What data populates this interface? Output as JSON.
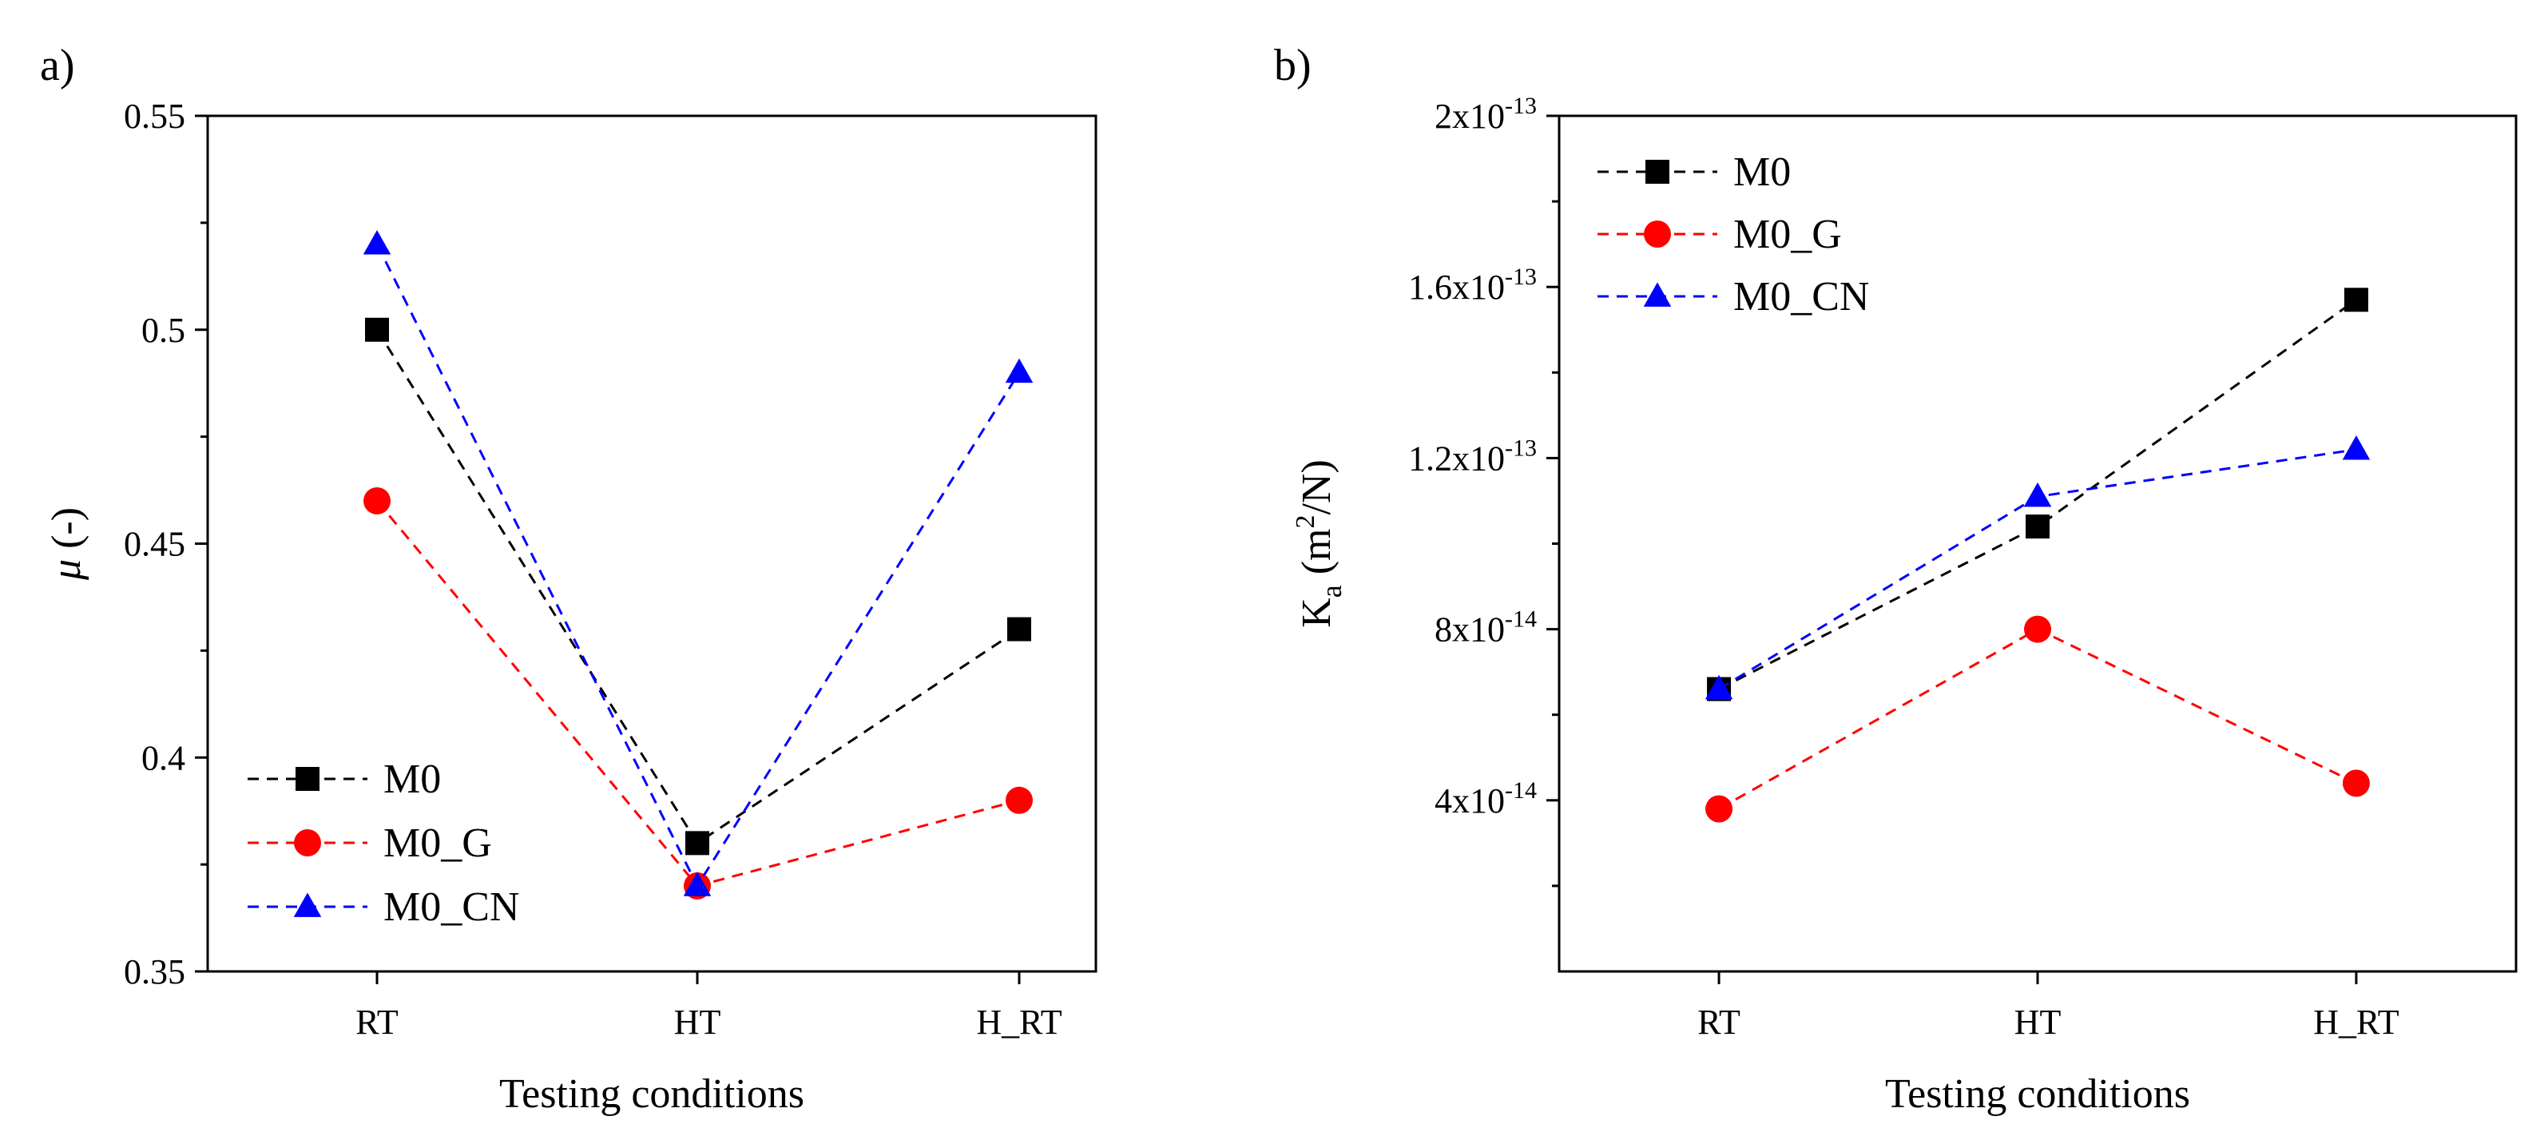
{
  "chart_data": [
    {
      "panel_label": "a)",
      "type": "line",
      "categories": [
        "RT",
        "HT",
        "H_RT"
      ],
      "xlabel": "Testing conditions",
      "ylabel_symbol": "μ",
      "ylabel_suffix": " (-)",
      "ylim": [
        0.35,
        0.55
      ],
      "yticks": [
        0.35,
        0.4,
        0.45,
        0.5,
        0.55
      ],
      "ytick_labels": [
        "0.35",
        "0.4",
        "0.45",
        "0.5",
        "0.55"
      ],
      "legend_position": "bottom-left",
      "series": [
        {
          "name": "M0",
          "marker": "square",
          "color": "#000000",
          "values": [
            0.5,
            0.38,
            0.43
          ]
        },
        {
          "name": "M0_G",
          "marker": "circle",
          "color": "#ff0000",
          "values": [
            0.46,
            0.37,
            0.39
          ]
        },
        {
          "name": "M0_CN",
          "marker": "triangle",
          "color": "#0000ff",
          "values": [
            0.52,
            0.37,
            0.49
          ]
        }
      ]
    },
    {
      "panel_label": "b)",
      "type": "line",
      "categories": [
        "RT",
        "HT",
        "H_RT"
      ],
      "xlabel": "Testing conditions",
      "ylabel_main": "K",
      "ylabel_sub": "a",
      "ylabel_unit_open": " (m",
      "ylabel_unit_sup": "2",
      "ylabel_unit_close": "/N)",
      "ylim": [
        0,
        2e-13
      ],
      "yticks": [
        4e-14,
        8e-14,
        1.2e-13,
        1.6e-13,
        2e-13
      ],
      "ytick_labels": [
        {
          "mantissa": "4x10",
          "exp": "-14"
        },
        {
          "mantissa": "8x10",
          "exp": "-14"
        },
        {
          "mantissa": "1.2x10",
          "exp": "-13"
        },
        {
          "mantissa": "1.6x10",
          "exp": "-13"
        },
        {
          "mantissa": "2x10",
          "exp": "-13"
        }
      ],
      "legend_position": "top-left",
      "series": [
        {
          "name": "M0",
          "marker": "square",
          "color": "#000000",
          "values": [
            6.6e-14,
            1.04e-13,
            1.57e-13
          ]
        },
        {
          "name": "M0_G",
          "marker": "circle",
          "color": "#ff0000",
          "values": [
            3.8e-14,
            8e-14,
            4.4e-14
          ]
        },
        {
          "name": "M0_CN",
          "marker": "triangle",
          "color": "#0000ff",
          "values": [
            6.6e-14,
            1.11e-13,
            1.22e-13
          ]
        }
      ]
    }
  ]
}
